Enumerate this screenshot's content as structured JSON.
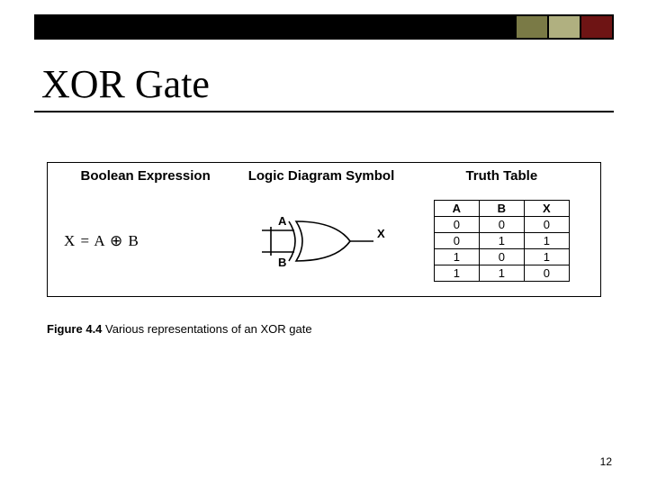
{
  "topbar": {
    "border_color": "#000000",
    "segments": [
      {
        "color": "#000000",
        "flex": true
      },
      {
        "color": "#7a7a46"
      },
      {
        "color": "#b0b080"
      },
      {
        "color": "#6e1414"
      }
    ]
  },
  "title": "XOR Gate",
  "figure": {
    "headers": {
      "col1": "Boolean Expression",
      "col2": "Logic Diagram Symbol",
      "col3": "Truth Table"
    },
    "expression": "X  =  A ⊕ B",
    "diagram": {
      "input_top": "A",
      "input_bottom": "B",
      "output": "X",
      "stroke": "#000000",
      "stroke_width": 1.6
    },
    "truth_table": {
      "columns": [
        "A",
        "B",
        "X"
      ],
      "rows": [
        [
          "0",
          "0",
          "0"
        ],
        [
          "0",
          "1",
          "1"
        ],
        [
          "1",
          "0",
          "1"
        ],
        [
          "1",
          "1",
          "0"
        ]
      ]
    }
  },
  "caption": {
    "label": "Figure 4.4",
    "text": "  Various representations of an XOR gate"
  },
  "page_number": "12"
}
